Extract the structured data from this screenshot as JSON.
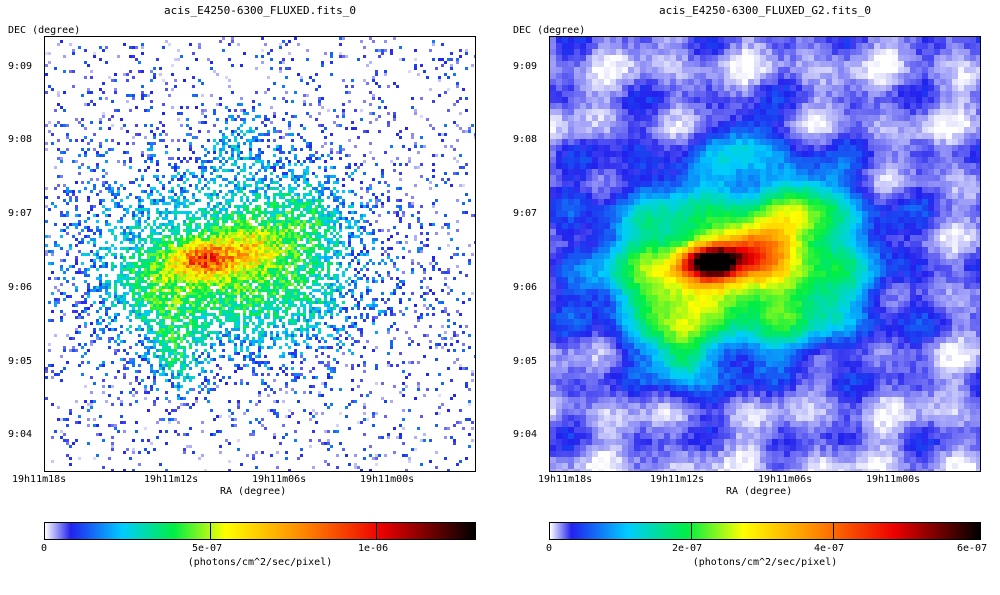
{
  "panels": [
    {
      "title": "acis_E4250-6300_FLUXED.fits_0",
      "y_axis_label": "DEC (degree)",
      "x_axis_label": "RA (degree)",
      "dec_ticks": [
        "9:09",
        "9:08",
        "9:07",
        "9:06",
        "9:05",
        "9:04"
      ],
      "ra_ticks": [
        "19h11m18s",
        "19h11m12s",
        "19h11m06s",
        "19h11m00s"
      ],
      "colorbar_ticks": [
        "0",
        "5e-07",
        "1e-06"
      ],
      "colorbar_unit": "(photons/cm^2/sec/pixel)",
      "style": "pixelated"
    },
    {
      "title": "acis_E4250-6300_FLUXED_G2.fits_0",
      "y_axis_label": "DEC (degree)",
      "x_axis_label": "RA (degree)",
      "dec_ticks": [
        "9:09",
        "9:08",
        "9:07",
        "9:06",
        "9:05",
        "9:04"
      ],
      "ra_ticks": [
        "19h11m18s",
        "19h11m12s",
        "19h11m06s",
        "19h11m00s"
      ],
      "colorbar_ticks": [
        "0",
        "2e-07",
        "4e-07",
        "6e-07"
      ],
      "colorbar_unit": "(photons/cm^2/sec/pixel)",
      "style": "smoothed"
    }
  ],
  "colormap": [
    "#ffffff",
    "#2222ee",
    "#00ccff",
    "#00ee44",
    "#ffff00",
    "#ff8800",
    "#ee0000",
    "#000000"
  ]
}
